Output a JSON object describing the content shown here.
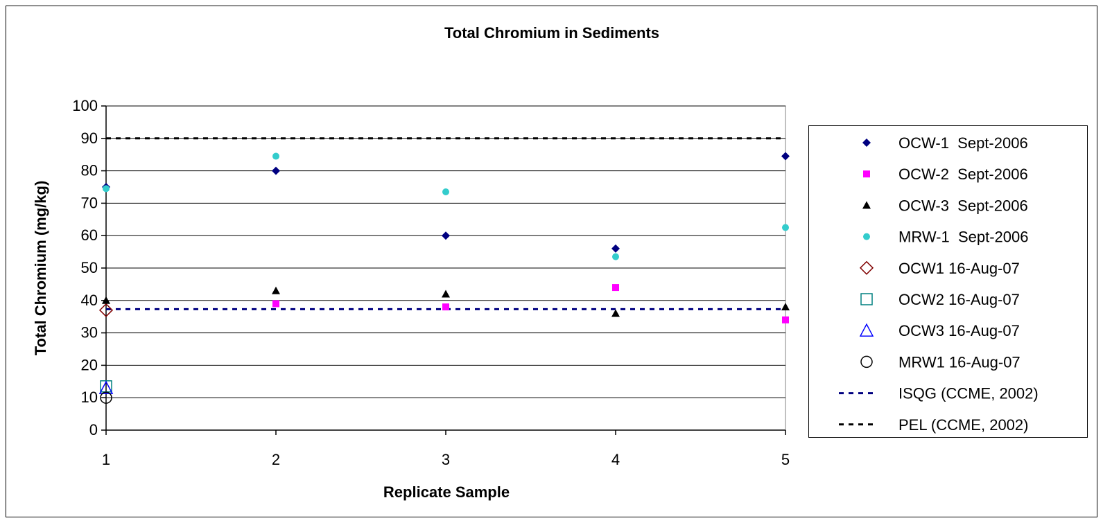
{
  "chart_data": {
    "type": "scatter",
    "title": "Total Chromium in Sediments",
    "xlabel": "Replicate Sample",
    "ylabel": "Total Chromium (mg/kg)",
    "xlim": [
      1,
      5
    ],
    "ylim": [
      0,
      100
    ],
    "xticks": [
      "1",
      "2",
      "3",
      "4",
      "5"
    ],
    "yticks": [
      "0",
      "10",
      "20",
      "30",
      "40",
      "50",
      "60",
      "70",
      "80",
      "90",
      "100"
    ],
    "ytick_values": [
      0,
      10,
      20,
      30,
      40,
      50,
      60,
      70,
      80,
      90,
      100
    ],
    "grid": "horizontal",
    "legend_position": "right",
    "series": [
      {
        "name": "OCW-1  Sept-2006",
        "marker": "diamond-filled",
        "color": "#000080",
        "x": [
          1,
          2,
          3,
          4,
          5
        ],
        "y": [
          75,
          80,
          60,
          56,
          84.5
        ]
      },
      {
        "name": "OCW-2  Sept-2006",
        "marker": "square-filled",
        "color": "#FF00FF",
        "x": [
          2,
          3,
          4,
          5
        ],
        "y": [
          39,
          38,
          44,
          34
        ]
      },
      {
        "name": "OCW-3  Sept-2006",
        "marker": "triangle-filled",
        "color": "#000000",
        "x": [
          1,
          2,
          3,
          4,
          5
        ],
        "y": [
          40,
          43,
          42,
          36,
          38
        ]
      },
      {
        "name": "MRW-1  Sept-2006",
        "marker": "circle-filled",
        "color": "#33CCCC",
        "x": [
          1,
          2,
          3,
          4,
          5
        ],
        "y": [
          74.5,
          84.5,
          73.5,
          53.5,
          62.5
        ]
      },
      {
        "name": "OCW1 16-Aug-07",
        "marker": "diamond-open",
        "color": "#800000",
        "x": [
          1
        ],
        "y": [
          37
        ]
      },
      {
        "name": "OCW2 16-Aug-07",
        "marker": "square-open",
        "color": "#008080",
        "x": [
          1
        ],
        "y": [
          13.5
        ]
      },
      {
        "name": "OCW3 16-Aug-07",
        "marker": "triangle-open",
        "color": "#0000FF",
        "x": [
          1
        ],
        "y": [
          13
        ]
      },
      {
        "name": "MRW1 16-Aug-07",
        "marker": "circle-open",
        "color": "#000000",
        "x": [
          1
        ],
        "y": [
          10
        ]
      },
      {
        "name": "ISQG (CCME, 2002)",
        "marker": "dashed-line",
        "color": "#000080",
        "y_const": 37.3
      },
      {
        "name": "PEL (CCME, 2002)",
        "marker": "dashed-line",
        "color": "#000000",
        "y_const": 90
      }
    ]
  }
}
